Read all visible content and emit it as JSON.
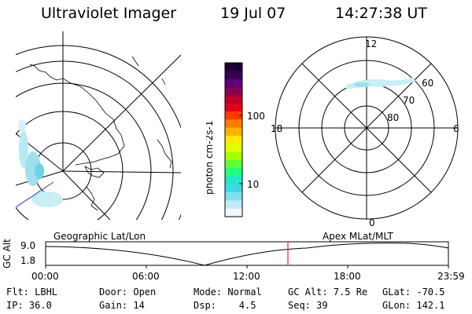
{
  "header": {
    "title": "Ultraviolet Imager",
    "date": "19 Jul 07",
    "time": "14:27:38 UT"
  },
  "colorbar": {
    "unit_label": "photon cm-2s-1",
    "ticks": [
      "100",
      "10"
    ],
    "colors": [
      "#1a0030",
      "#3a0050",
      "#60007a",
      "#8a0050",
      "#b8002a",
      "#e0001a",
      "#ff3a00",
      "#ff7a00",
      "#ffb000",
      "#ffe800",
      "#e0ff00",
      "#a8ff00",
      "#60ff30",
      "#20ff80",
      "#20e8c8",
      "#40d8e8",
      "#80e0f0",
      "#c0ecf8",
      "#f0f8fc"
    ]
  },
  "polar_plot": {
    "mlt_labels": {
      "top": "12",
      "left": "18",
      "right": "6",
      "bottom": "0"
    },
    "lat_labels": [
      "60",
      "70",
      "80"
    ]
  },
  "timeline": {
    "left_label": "Geographic Lat/Lon",
    "right_label": "Apex MLat/MLT",
    "axis_title": "GC Alt",
    "y_ticks": [
      "9.0",
      "1.8"
    ],
    "x_ticks": [
      "00:00",
      "06:00",
      "12:00",
      "18:00",
      "23:59"
    ],
    "marker_time": "14:27",
    "marker_color": "#ff2020"
  },
  "info": {
    "rows": [
      [
        "Flt: LBHL",
        "Door: Open",
        "Mode: Normal",
        "GC Alt: 7.5 Re",
        "GLat: -70.5"
      ],
      [
        "IP: 36.0",
        "Gain: 14",
        "Dsp:    4.5",
        "Seq: 39",
        "GLon: 142.1"
      ]
    ]
  }
}
